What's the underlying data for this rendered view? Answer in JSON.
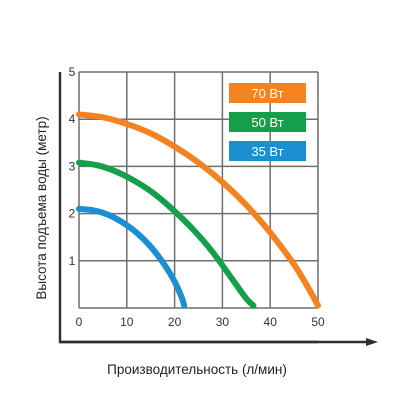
{
  "chart_data": {
    "type": "line",
    "title": "",
    "xlabel": "Производительность (л/мин)",
    "ylabel": "Высота подъема воды (метр)",
    "xlim": [
      0,
      50
    ],
    "ylim": [
      0,
      5
    ],
    "xticks": [
      "0",
      "10",
      "20",
      "30",
      "40",
      "50"
    ],
    "yticks": [
      "1",
      "2",
      "3",
      "4",
      "5"
    ],
    "grid": true,
    "legend_position": "top-right",
    "series": [
      {
        "name": "70 Вт",
        "color": "#f58220",
        "x": [
          0,
          5,
          10,
          15,
          20,
          25,
          30,
          35,
          40,
          45,
          48,
          50
        ],
        "y": [
          4.1,
          4.04,
          3.9,
          3.7,
          3.42,
          3.08,
          2.67,
          2.18,
          1.6,
          0.92,
          0.42,
          0.05
        ]
      },
      {
        "name": "50 Вт",
        "color": "#14a04a",
        "x": [
          0,
          4,
          8,
          12,
          16,
          20,
          24,
          28,
          32,
          35,
          36.5
        ],
        "y": [
          3.08,
          3.02,
          2.88,
          2.67,
          2.4,
          2.05,
          1.65,
          1.18,
          0.62,
          0.2,
          0.05
        ]
      },
      {
        "name": "35 Вт",
        "color": "#1a8fd1",
        "x": [
          0,
          3,
          6,
          9,
          12,
          15,
          18,
          20,
          21.5,
          22
        ],
        "y": [
          2.1,
          2.07,
          1.98,
          1.82,
          1.6,
          1.3,
          0.9,
          0.56,
          0.22,
          0.05
        ]
      }
    ]
  }
}
